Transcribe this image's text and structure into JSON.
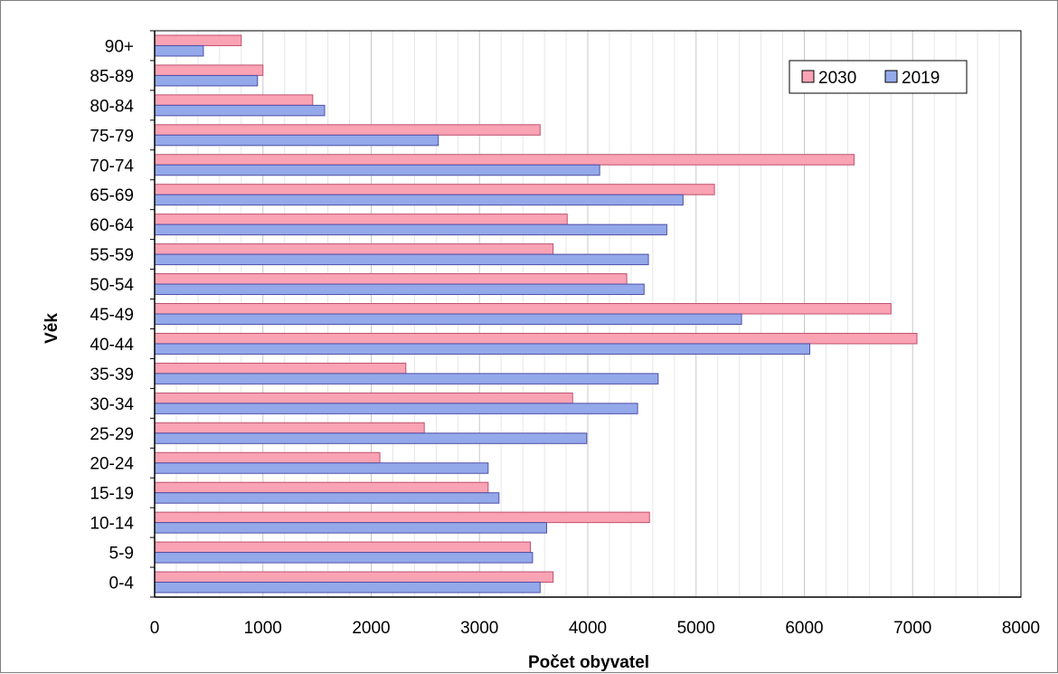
{
  "chart_data": {
    "type": "bar",
    "orientation": "horizontal",
    "categories": [
      "0-4",
      "5-9",
      "10-14",
      "15-19",
      "20-24",
      "25-29",
      "30-34",
      "35-39",
      "40-44",
      "45-49",
      "50-54",
      "55-59",
      "60-64",
      "65-69",
      "70-74",
      "75-79",
      "80-84",
      "85-89",
      "90+"
    ],
    "series": [
      {
        "name": "2030",
        "color": "#f9a3b4",
        "values": [
          3680,
          3470,
          4570,
          3080,
          2080,
          2490,
          3860,
          2320,
          7040,
          6800,
          4360,
          3680,
          3810,
          5170,
          6460,
          3560,
          1460,
          1000,
          800
        ]
      },
      {
        "name": "2019",
        "color": "#94a9e9",
        "values": [
          3560,
          3490,
          3620,
          3180,
          3080,
          3990,
          4460,
          4650,
          6050,
          5420,
          4520,
          4560,
          4730,
          4880,
          4110,
          2620,
          1570,
          950,
          450
        ]
      }
    ],
    "xlabel": "Počet obyvatel",
    "ylabel": "Věk",
    "xlim": [
      0,
      8000
    ],
    "x_ticks": [
      "0",
      "1000",
      "2000",
      "3000",
      "4000",
      "5000",
      "6000",
      "7000",
      "8000"
    ],
    "grid": true,
    "legend_position": "top-right"
  }
}
